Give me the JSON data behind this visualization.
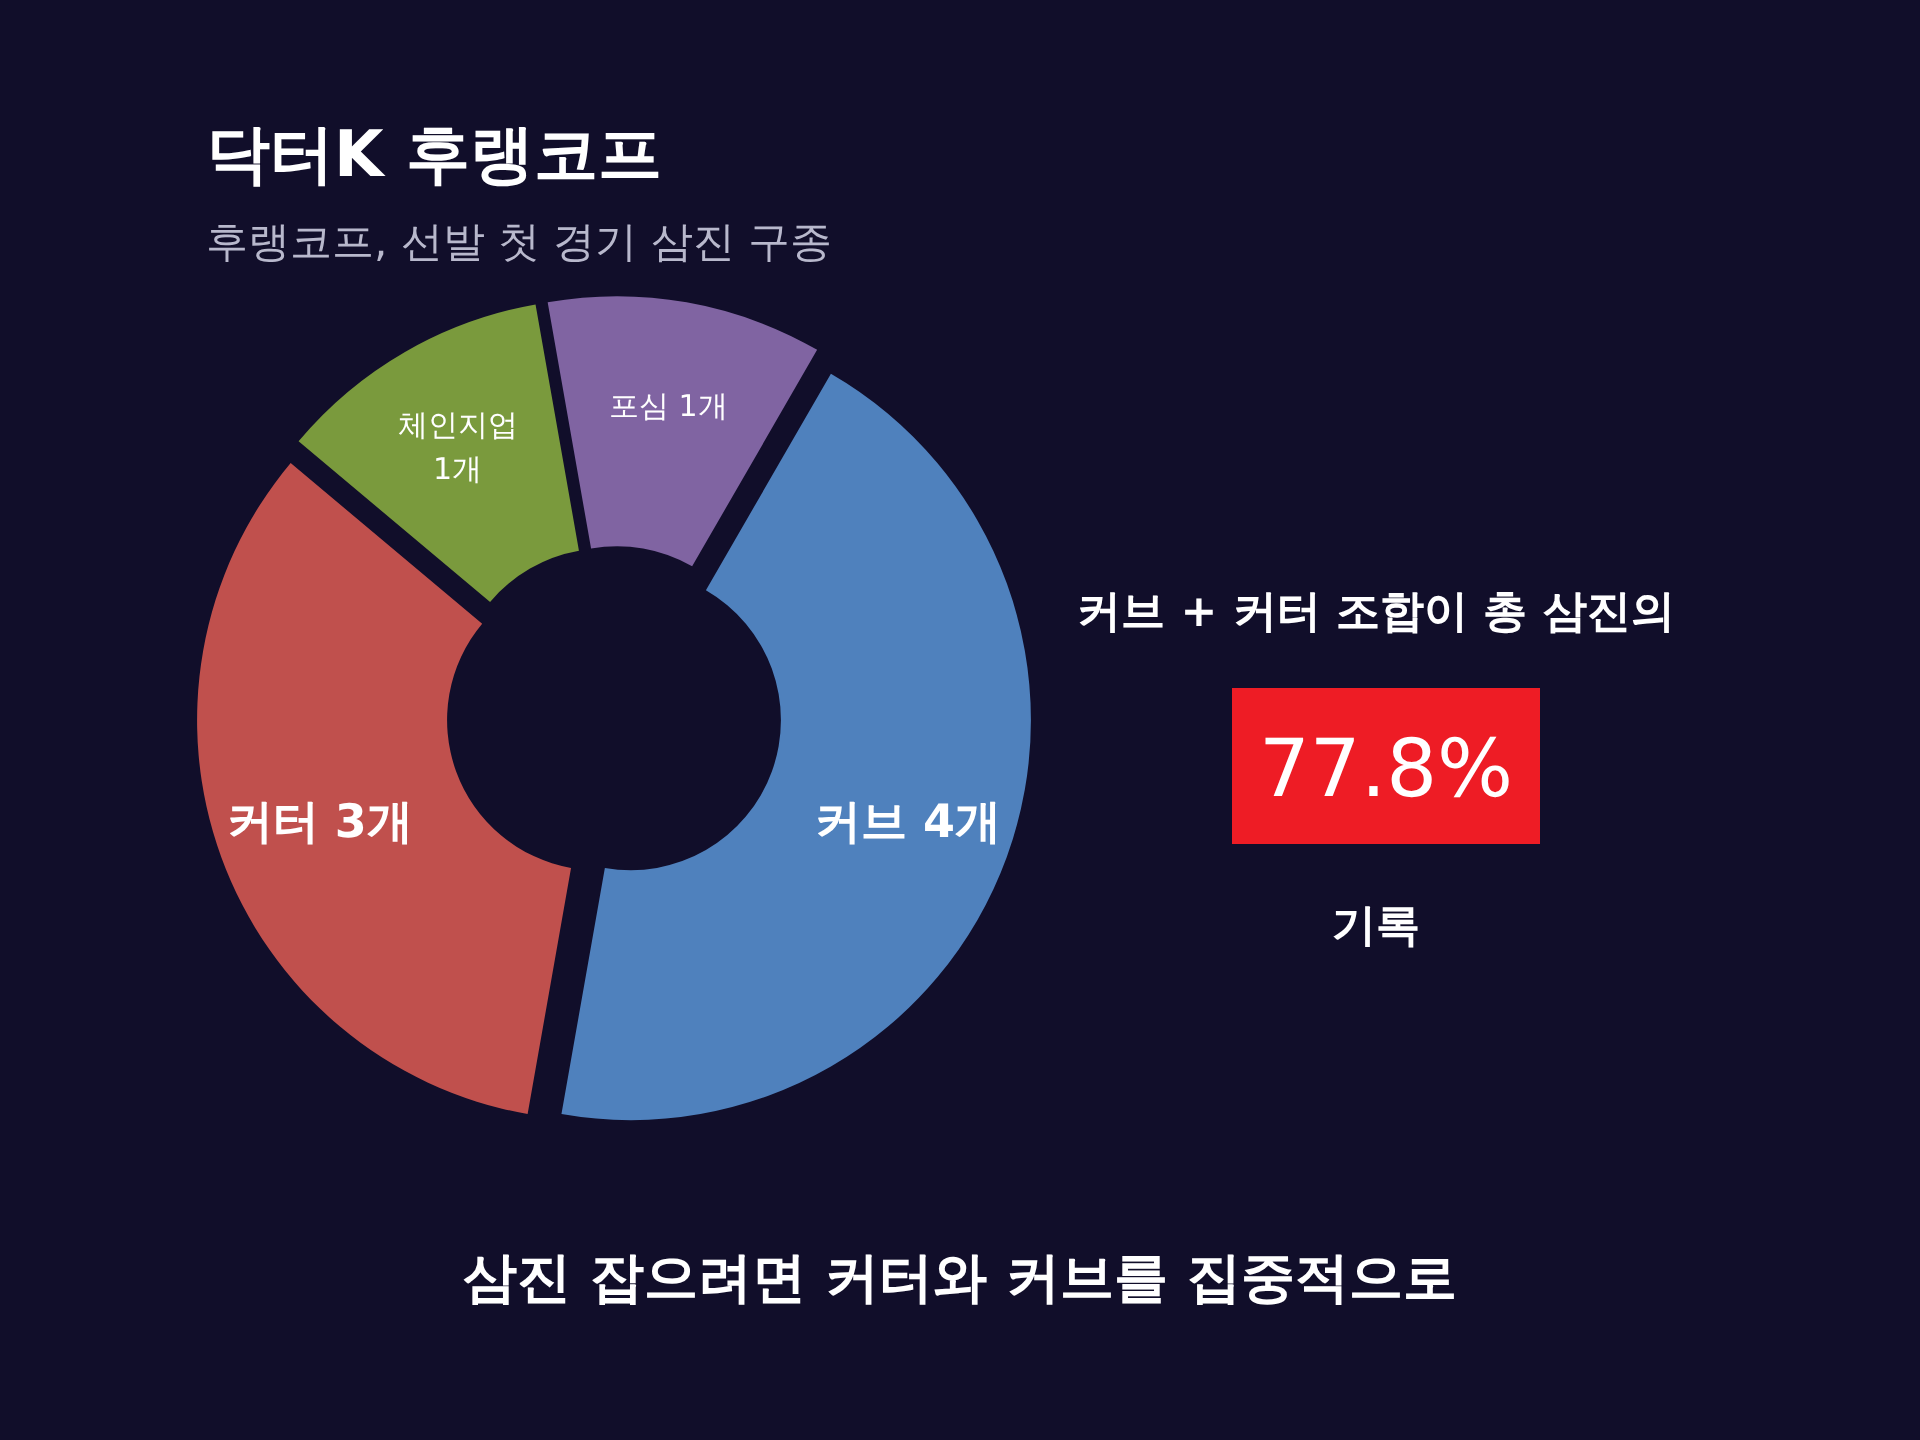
{
  "chart_data": {
    "type": "donut",
    "title": "닥터K 후랭코프",
    "subtitle": "후랭코프, 선발 첫 경기 삼진 구종",
    "categories": [
      "커브",
      "커터",
      "체인지업",
      "포심"
    ],
    "values": [
      4,
      3,
      1,
      1
    ],
    "colors": [
      "#4f81bd",
      "#c0504d",
      "#7a9a3d",
      "#8064a2"
    ],
    "value_labels": [
      "4개",
      "3개",
      "1개",
      "1개"
    ],
    "annotations": [
      "커브 + 커터 조합이 총 삼진의",
      "77.8%",
      "기록",
      "삼진 잡으려면 커터와 커브를 집중적으로"
    ]
  }
}
